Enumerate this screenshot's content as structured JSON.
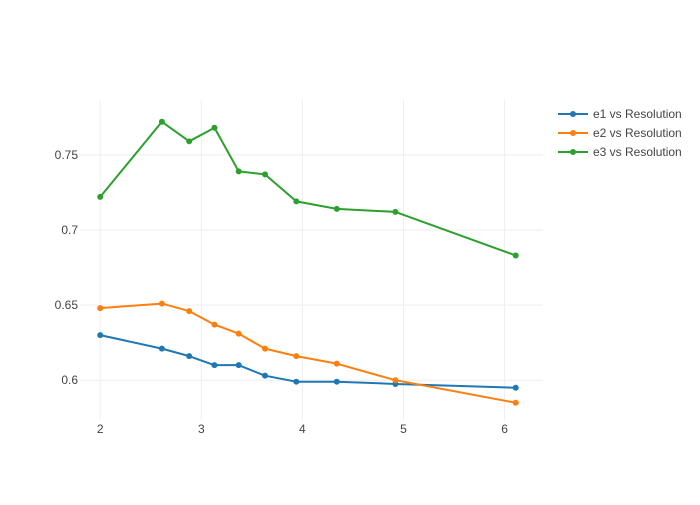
{
  "chart_data": {
    "type": "line",
    "title": "",
    "xlabel": "",
    "ylabel": "",
    "xlim": [
      1.8,
      6.38
    ],
    "ylim": [
      0.5735,
      0.7865
    ],
    "x_ticks": [
      2,
      3,
      4,
      5,
      6
    ],
    "x_tick_labels": [
      "2",
      "3",
      "4",
      "5",
      "6"
    ],
    "y_ticks": [
      0.6,
      0.65,
      0.7,
      0.75
    ],
    "y_tick_labels": [
      "0.6",
      "0.65",
      "0.7",
      "0.75"
    ],
    "grid": true,
    "legend_position": "top-right",
    "series": [
      {
        "name": "e1 vs Resolution",
        "color": "#1f77b4",
        "x": [
          2.0,
          2.61,
          2.88,
          3.13,
          3.37,
          3.63,
          3.94,
          4.34,
          4.92,
          6.11
        ],
        "y": [
          0.63,
          0.621,
          0.616,
          0.61,
          0.61,
          0.603,
          0.599,
          0.599,
          0.5975,
          0.595
        ]
      },
      {
        "name": "e2 vs Resolution",
        "color": "#ff7f0e",
        "x": [
          2.0,
          2.61,
          2.88,
          3.13,
          3.37,
          3.63,
          3.94,
          4.34,
          4.92,
          6.11
        ],
        "y": [
          0.648,
          0.651,
          0.646,
          0.637,
          0.631,
          0.621,
          0.616,
          0.611,
          0.6,
          0.585
        ]
      },
      {
        "name": "e3 vs Resolution",
        "color": "#2ca02c",
        "x": [
          2.0,
          2.61,
          2.88,
          3.13,
          3.37,
          3.63,
          3.94,
          4.34,
          4.92,
          6.11
        ],
        "y": [
          0.722,
          0.772,
          0.759,
          0.768,
          0.739,
          0.737,
          0.719,
          0.714,
          0.712,
          0.683
        ]
      }
    ]
  }
}
